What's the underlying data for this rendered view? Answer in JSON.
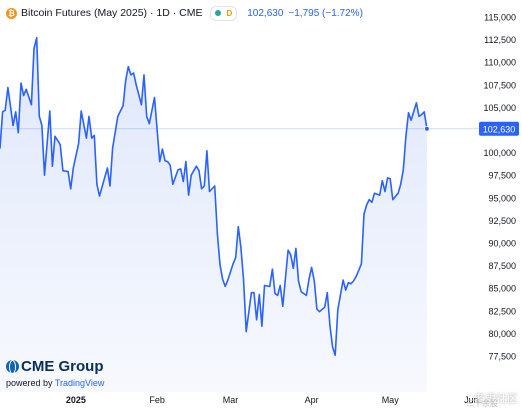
{
  "header": {
    "title": "Bitcoin Futures (May 2025) · 1D · CME",
    "coin_glyph": "₿",
    "badge_letter": "D",
    "price": "102,630",
    "change": "−1,795 (−1.72%)"
  },
  "logo": {
    "name": "CME Group",
    "powered_prefix": "powered by ",
    "powered_brand": "TradingView"
  },
  "watermark": {
    "text": "老虎社区",
    "sub": "三十余股"
  },
  "colors": {
    "line": "#2962ff",
    "area": "#dfe7fb",
    "price_tag": "#2962ff",
    "axis_text": "#131722",
    "coin": "#f7931a",
    "badge": "#ff9800",
    "status_dot": "#26a69a"
  },
  "chart_data": {
    "type": "line",
    "title": "Bitcoin Futures (May 2025) · 1D · CME",
    "xlabel": "",
    "ylabel": "",
    "y_ticks": [
      77500,
      80000,
      82500,
      85000,
      87500,
      90000,
      92500,
      95000,
      97500,
      100000,
      102500,
      105000,
      107500,
      110000,
      112500,
      115000
    ],
    "y_tick_labels": [
      "77,500",
      "80,000",
      "82,500",
      "85,000",
      "87,500",
      "90,000",
      "92,500",
      "95,000",
      "97,500",
      "100,000",
      "102,500",
      "105,000",
      "107,500",
      "110,000",
      "112,500",
      "115,000"
    ],
    "ylim": [
      75500,
      115500
    ],
    "xlim": [
      "2024-12-03",
      "2025-06-02"
    ],
    "x_ticks": [
      {
        "date": "2025-01-01",
        "label": "2025",
        "bold": true
      },
      {
        "date": "2025-02-01",
        "label": "Feb",
        "bold": false
      },
      {
        "date": "2025-03-01",
        "label": "Mar",
        "bold": false
      },
      {
        "date": "2025-04-01",
        "label": "Apr",
        "bold": false
      },
      {
        "date": "2025-05-01",
        "label": "May",
        "bold": false
      },
      {
        "date": "2025-06-01",
        "label": "Jun",
        "bold": false
      }
    ],
    "last_price": 102630,
    "last_price_label": "102,630",
    "grid": false,
    "series": [
      {
        "x": [
          "2024-12-03",
          "2024-12-04",
          "2024-12-05",
          "2024-12-06",
          "2024-12-08",
          "2024-12-09",
          "2024-12-10",
          "2024-12-11",
          "2024-12-12",
          "2024-12-13",
          "2024-12-15",
          "2024-12-16",
          "2024-12-17",
          "2024-12-18",
          "2024-12-19",
          "2024-12-20",
          "2024-12-22",
          "2024-12-23",
          "2024-12-24",
          "2024-12-26",
          "2024-12-27",
          "2024-12-29",
          "2024-12-30",
          "2024-12-31",
          "2025-01-02",
          "2025-01-03",
          "2025-01-05",
          "2025-01-06",
          "2025-01-07",
          "2025-01-08",
          "2025-01-09",
          "2025-01-10",
          "2025-01-13",
          "2025-01-14",
          "2025-01-15",
          "2025-01-17",
          "2025-01-19",
          "2025-01-20",
          "2025-01-21",
          "2025-01-22",
          "2025-01-23",
          "2025-01-24",
          "2025-01-26",
          "2025-01-27",
          "2025-01-28",
          "2025-01-29",
          "2025-01-31",
          "2025-02-02",
          "2025-02-03",
          "2025-02-04",
          "2025-02-05",
          "2025-02-06",
          "2025-02-07",
          "2025-02-09",
          "2025-02-10",
          "2025-02-11",
          "2025-02-12",
          "2025-02-13",
          "2025-02-14",
          "2025-02-16",
          "2025-02-17",
          "2025-02-18",
          "2025-02-19",
          "2025-02-20",
          "2025-02-21",
          "2025-02-23",
          "2025-02-24",
          "2025-02-25",
          "2025-02-26",
          "2025-02-27",
          "2025-02-28",
          "2025-03-02",
          "2025-03-03",
          "2025-03-04",
          "2025-03-05",
          "2025-03-06",
          "2025-03-07",
          "2025-03-09",
          "2025-03-10",
          "2025-03-11",
          "2025-03-12",
          "2025-03-13",
          "2025-03-14",
          "2025-03-16",
          "2025-03-17",
          "2025-03-18",
          "2025-03-19",
          "2025-03-20",
          "2025-03-21",
          "2025-03-23",
          "2025-03-24",
          "2025-03-25",
          "2025-03-26",
          "2025-03-27",
          "2025-03-28",
          "2025-03-30",
          "2025-03-31",
          "2025-04-01",
          "2025-04-02",
          "2025-04-03",
          "2025-04-04",
          "2025-04-06",
          "2025-04-07",
          "2025-04-08",
          "2025-04-09",
          "2025-04-10",
          "2025-04-11",
          "2025-04-13",
          "2025-04-14",
          "2025-04-15",
          "2025-04-16",
          "2025-04-17",
          "2025-04-18",
          "2025-04-20",
          "2025-04-21",
          "2025-04-22",
          "2025-04-23",
          "2025-04-24",
          "2025-04-25",
          "2025-04-27",
          "2025-04-28",
          "2025-04-29",
          "2025-04-30",
          "2025-05-01",
          "2025-05-02",
          "2025-05-04",
          "2025-05-05",
          "2025-05-06",
          "2025-05-07",
          "2025-05-08",
          "2025-05-09",
          "2025-05-11",
          "2025-05-12",
          "2025-05-13",
          "2025-05-14",
          "2025-05-15"
        ],
        "y": [
          100500,
          104500,
          104700,
          107200,
          103000,
          104500,
          102200,
          107700,
          106300,
          107000,
          105300,
          111500,
          112700,
          104000,
          103000,
          97500,
          104600,
          98500,
          101800,
          100900,
          98000,
          97900,
          96000,
          98300,
          101000,
          104600,
          101600,
          104000,
          101600,
          101900,
          96500,
          95200,
          98300,
          96300,
          100500,
          104000,
          105200,
          108000,
          109500,
          108600,
          108800,
          107500,
          105300,
          108600,
          104000,
          103200,
          106100,
          99000,
          100400,
          99100,
          99000,
          98600,
          96500,
          98100,
          98200,
          96800,
          99000,
          95300,
          97500,
          98500,
          98000,
          96000,
          96300,
          100200,
          95700,
          96300,
          91000,
          87600,
          86000,
          85200,
          85900,
          87700,
          88400,
          91800,
          89500,
          86000,
          80200,
          84500,
          84500,
          81500,
          84300,
          80800,
          85300,
          85200,
          87100,
          84400,
          84200,
          85300,
          83000,
          89200,
          88700,
          87200,
          89400,
          85800,
          84600,
          84200,
          86000,
          87300,
          85800,
          82700,
          82400,
          82900,
          84500,
          80800,
          78500,
          77600,
          82600,
          85900,
          84800,
          85600,
          85500,
          85800,
          86300,
          87700,
          93200,
          94200,
          94800,
          94500,
          95500,
          95300,
          96900,
          95700,
          97200,
          97100,
          94800,
          95500,
          96500,
          98100,
          101800,
          104400,
          103600,
          105500,
          104000,
          104200,
          104500,
          102630
        ]
      }
    ]
  }
}
